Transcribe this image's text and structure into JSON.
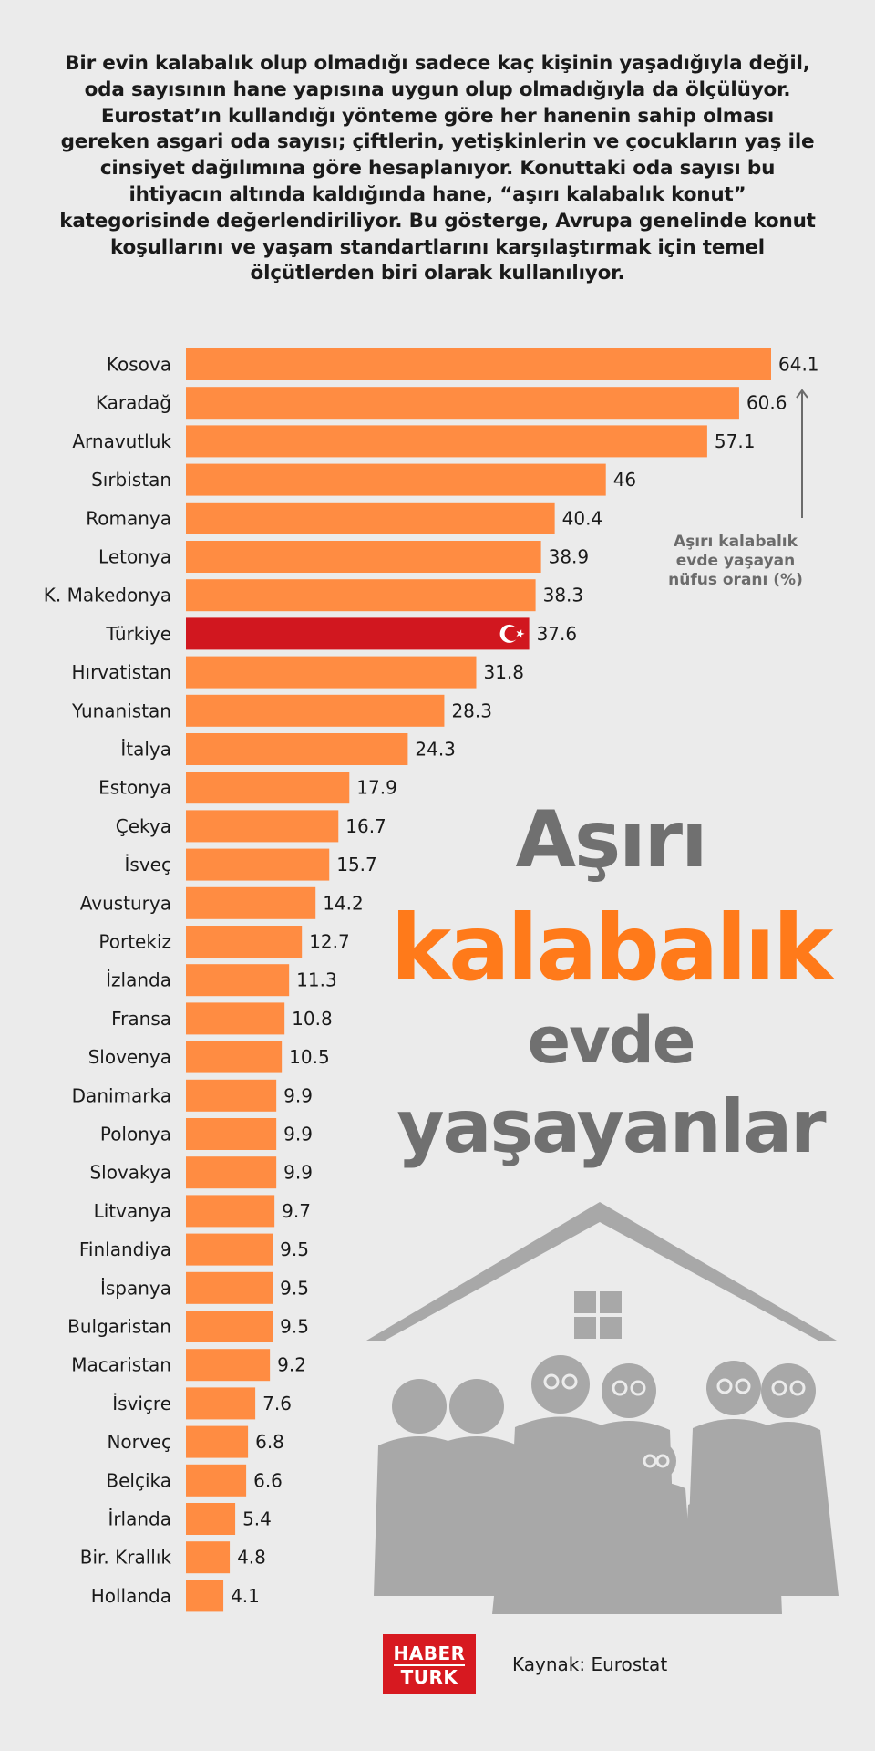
{
  "intro_text": "Bir evin kalabalık olup olmadığı sadece kaç kişinin yaşadığıyla değil, oda sayısının hane yapısına uygun olup olmadığıyla da ölçülüyor. Eurostat’ın kullandığı yönteme göre her hanenin sahip olması gereken asgari oda sayısı; çiftlerin, yetişkinlerin ve çocukların yaş ile cinsiyet dağılımına göre hesaplanıyor. Konuttaki oda sayısı bu ihtiyacın altında kaldığında hane, “aşırı kalabalık konut” kategorisinde değerlendiriliyor. Bu gösterge, Avrupa genelinde konut koşullarını ve yaşam standartlarını karşılaştırmak için temel ölçütlerden biri olarak kullanılıyor.",
  "title": {
    "line1": "Aşırı",
    "line2": "kalabalık",
    "line3": "evde",
    "line4": "yaşayanlar"
  },
  "unit_label": "Aşırı kalabalık evde yaşayan nüfus oranı (%)",
  "source": "Kaynak: Eurostat",
  "logo": {
    "line1": "HABER",
    "line2": "TURK"
  },
  "colors": {
    "bar": "#ff8c42",
    "highlight": "#d1171f",
    "title_gray": "#707070",
    "title_orange": "#ff7a1a",
    "background": "#ebebeb"
  },
  "icons": [
    "turkish-flag-icon",
    "house-roof-icon",
    "window-icon",
    "family-icon"
  ],
  "chart_data": {
    "type": "bar",
    "orientation": "horizontal",
    "highlight": "Türkiye",
    "categories": [
      "Kosova",
      "Karadağ",
      "Arnavutluk",
      "Sırbistan",
      "Romanya",
      "Letonya",
      "K. Makedonya",
      "Türkiye",
      "Hırvatistan",
      "Yunanistan",
      "İtalya",
      "Estonya",
      "Çekya",
      "İsveç",
      "Avusturya",
      "Portekiz",
      "İzlanda",
      "Fransa",
      "Slovenya",
      "Danimarka",
      "Polonya",
      "Slovakya",
      "Litvanya",
      "Finlandiya",
      "İspanya",
      "Bulgaristan",
      "Macaristan",
      "İsviçre",
      "Norveç",
      "Belçika",
      "İrlanda",
      "Bir. Krallık",
      "Hollanda"
    ],
    "values": [
      64.1,
      60.6,
      57.1,
      46,
      40.4,
      38.9,
      38.3,
      37.6,
      31.8,
      28.3,
      24.3,
      17.9,
      16.7,
      15.7,
      14.2,
      12.7,
      11.3,
      10.8,
      10.5,
      9.9,
      9.9,
      9.9,
      9.7,
      9.5,
      9.5,
      9.5,
      9.2,
      7.6,
      6.8,
      6.6,
      5.4,
      4.8,
      4.1
    ],
    "value_labels": [
      "64.1",
      "60.6",
      "57.1",
      "46",
      "40.4",
      "38.9",
      "38.3",
      "37.6",
      "31.8",
      "28.3",
      "24.3",
      "17.9",
      "16.7",
      "15.7",
      "14.2",
      "12.7",
      "11.3",
      "10.8",
      "10.5",
      "9.9",
      "9.9",
      "9.9",
      "9.7",
      "9.5",
      "9.5",
      "9.5",
      "9.2",
      "7.6",
      "6.8",
      "6.6",
      "5.4",
      "4.8",
      "4.1"
    ],
    "xlim": [
      0,
      64.1
    ],
    "grid": false,
    "legend": "none"
  }
}
